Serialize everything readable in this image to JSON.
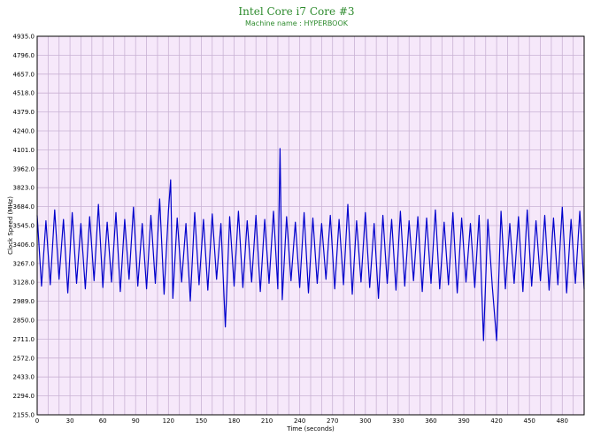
{
  "title": "Intel Core i7 Core #3",
  "subtitle": "Machine name : HYPERBOOK",
  "colors": {
    "line": "#0000cc",
    "plot_bg": "#f6e8fa",
    "grid": "#c9b2d4",
    "title": "#2e8b2e"
  },
  "chart_data": {
    "type": "line",
    "title": "Intel Core i7 Core #3",
    "subtitle": "Machine name : HYPERBOOK",
    "xlabel": "Time (seconds)",
    "ylabel": "Clock Speed (MHz)",
    "xlim": [
      0,
      500
    ],
    "ylim": [
      2155.0,
      4935.0
    ],
    "x_ticks": [
      0,
      30,
      60,
      90,
      120,
      150,
      180,
      210,
      240,
      270,
      300,
      330,
      360,
      390,
      420,
      450,
      480
    ],
    "y_ticks": [
      "2155.0",
      "2294.0",
      "2433.0",
      "2572.0",
      "2711.0",
      "2850.0",
      "2989.0",
      "3128.0",
      "3267.0",
      "3406.0",
      "3545.0",
      "3684.0",
      "3823.0",
      "3962.0",
      "4101.0",
      "4240.0",
      "4379.0",
      "4518.0",
      "4657.0",
      "4796.0",
      "4935.0"
    ],
    "grid": true,
    "legend": "none",
    "series": [
      {
        "x": [
          0,
          4,
          8,
          12,
          16,
          20,
          24,
          28,
          32,
          36,
          40,
          44,
          48,
          52,
          56,
          60,
          64,
          68,
          72,
          76,
          80,
          84,
          88,
          92,
          96,
          100,
          104,
          108,
          112,
          116,
          120,
          122,
          124,
          128,
          132,
          136,
          140,
          144,
          148,
          152,
          156,
          160,
          164,
          168,
          172,
          176,
          180,
          184,
          188,
          192,
          196,
          200,
          204,
          208,
          212,
          216,
          220,
          222,
          224,
          228,
          232,
          236,
          240,
          244,
          248,
          252,
          256,
          260,
          264,
          268,
          272,
          276,
          280,
          284,
          288,
          292,
          296,
          300,
          304,
          308,
          312,
          316,
          320,
          324,
          328,
          332,
          336,
          340,
          344,
          348,
          352,
          356,
          360,
          364,
          368,
          372,
          376,
          380,
          384,
          388,
          392,
          396,
          400,
          404,
          408,
          412,
          416,
          420,
          424,
          428,
          432,
          436,
          440,
          444,
          448,
          452,
          456,
          460,
          464,
          468,
          472,
          476,
          480,
          484,
          488,
          492,
          496,
          500
        ],
        "y": [
          3620,
          3100,
          3580,
          3110,
          3660,
          3150,
          3590,
          3050,
          3640,
          3120,
          3560,
          3080,
          3610,
          3140,
          3700,
          3090,
          3570,
          3130,
          3640,
          3060,
          3590,
          3150,
          3680,
          3100,
          3560,
          3080,
          3620,
          3120,
          3740,
          3040,
          3650,
          3880,
          3010,
          3600,
          3130,
          3560,
          2990,
          3640,
          3110,
          3590,
          3070,
          3630,
          3150,
          3560,
          2800,
          3610,
          3100,
          3650,
          3090,
          3580,
          3130,
          3620,
          3060,
          3590,
          3120,
          3650,
          3080,
          4110,
          3000,
          3610,
          3140,
          3570,
          3090,
          3640,
          3050,
          3600,
          3120,
          3560,
          3150,
          3620,
          3080,
          3590,
          3110,
          3700,
          3040,
          3580,
          3130,
          3640,
          3090,
          3560,
          3010,
          3620,
          3120,
          3590,
          3070,
          3650,
          3100,
          3580,
          3140,
          3610,
          3060,
          3600,
          3120,
          3660,
          3080,
          3570,
          3110,
          3640,
          3050,
          3600,
          3130,
          3560,
          3090,
          3620,
          2700,
          3590,
          3100,
          2700,
          3650,
          3080,
          3560,
          3120,
          3610,
          3060,
          3660,
          3100,
          3580,
          3140,
          3620,
          3070,
          3600,
          3110,
          3680,
          3050,
          3590,
          3120,
          3650,
          3080
        ]
      }
    ]
  }
}
